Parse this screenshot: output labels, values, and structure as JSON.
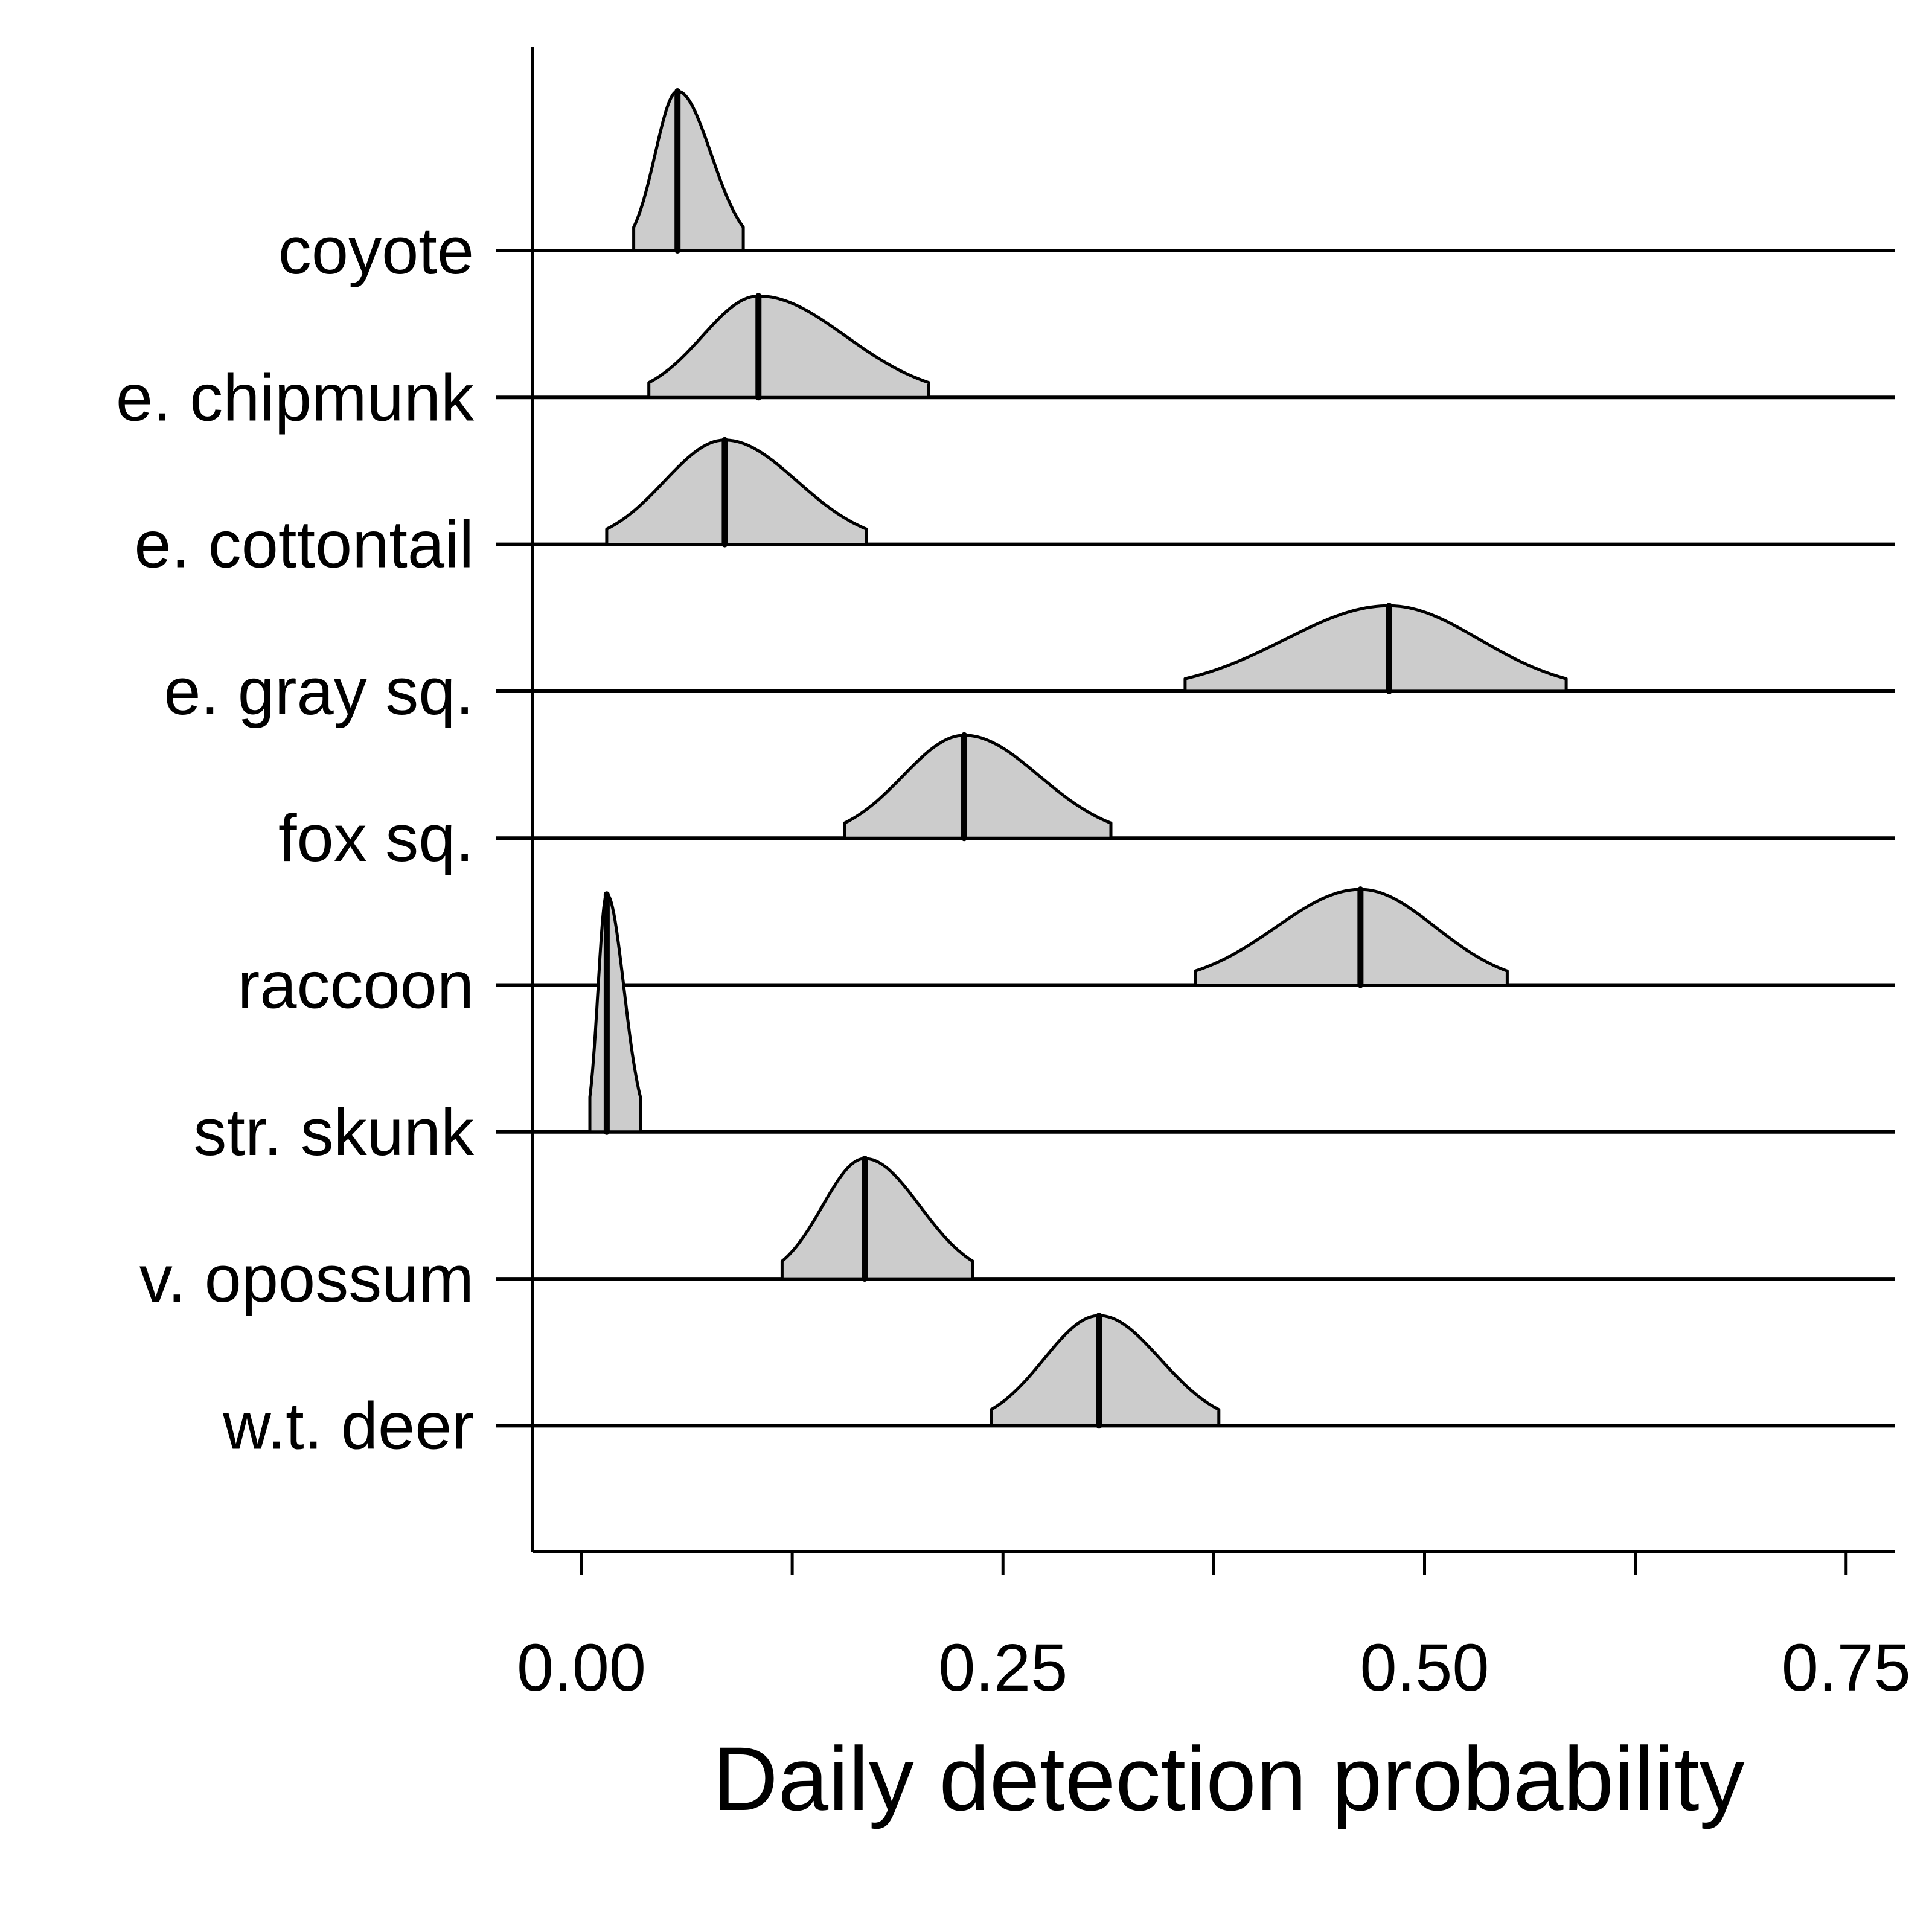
{
  "chart_data": {
    "type": "ridgeline",
    "xlabel": "Daily detection probability",
    "ylabel": "",
    "title": "",
    "xlim": [
      -0.03,
      0.78
    ],
    "xticks": [
      0.0,
      0.125,
      0.25,
      0.375,
      0.5,
      0.625,
      0.75
    ],
    "xtick_labels": [
      "0.00",
      "",
      "0.25",
      "",
      "0.50",
      "",
      "0.75"
    ],
    "grid": false,
    "colors": {
      "fill": "#cccccc",
      "stroke": "#000000",
      "background": "#ffffff"
    },
    "series": [
      {
        "name": "coyote",
        "lower": 0.031,
        "median": 0.057,
        "upper": 0.096,
        "scale": 1.1
      },
      {
        "name": "e. chipmunk",
        "lower": 0.04,
        "median": 0.105,
        "upper": 0.206,
        "scale": 0.7
      },
      {
        "name": "e. cottontail",
        "lower": 0.015,
        "median": 0.085,
        "upper": 0.169,
        "scale": 0.72
      },
      {
        "name": "e. gray sq.",
        "lower": 0.358,
        "median": 0.479,
        "upper": 0.584,
        "scale": 0.59
      },
      {
        "name": "fox sq.",
        "lower": 0.156,
        "median": 0.227,
        "upper": 0.314,
        "scale": 0.71
      },
      {
        "name": "raccoon",
        "lower": 0.364,
        "median": 0.462,
        "upper": 0.549,
        "scale": 0.66
      },
      {
        "name": "str. skunk",
        "lower": 0.005,
        "median": 0.015,
        "upper": 0.035,
        "scale": 1.64
      },
      {
        "name": "v. opossum",
        "lower": 0.119,
        "median": 0.168,
        "upper": 0.232,
        "scale": 0.83
      },
      {
        "name": "w.t. deer",
        "lower": 0.243,
        "median": 0.307,
        "upper": 0.378,
        "scale": 0.76
      }
    ]
  }
}
